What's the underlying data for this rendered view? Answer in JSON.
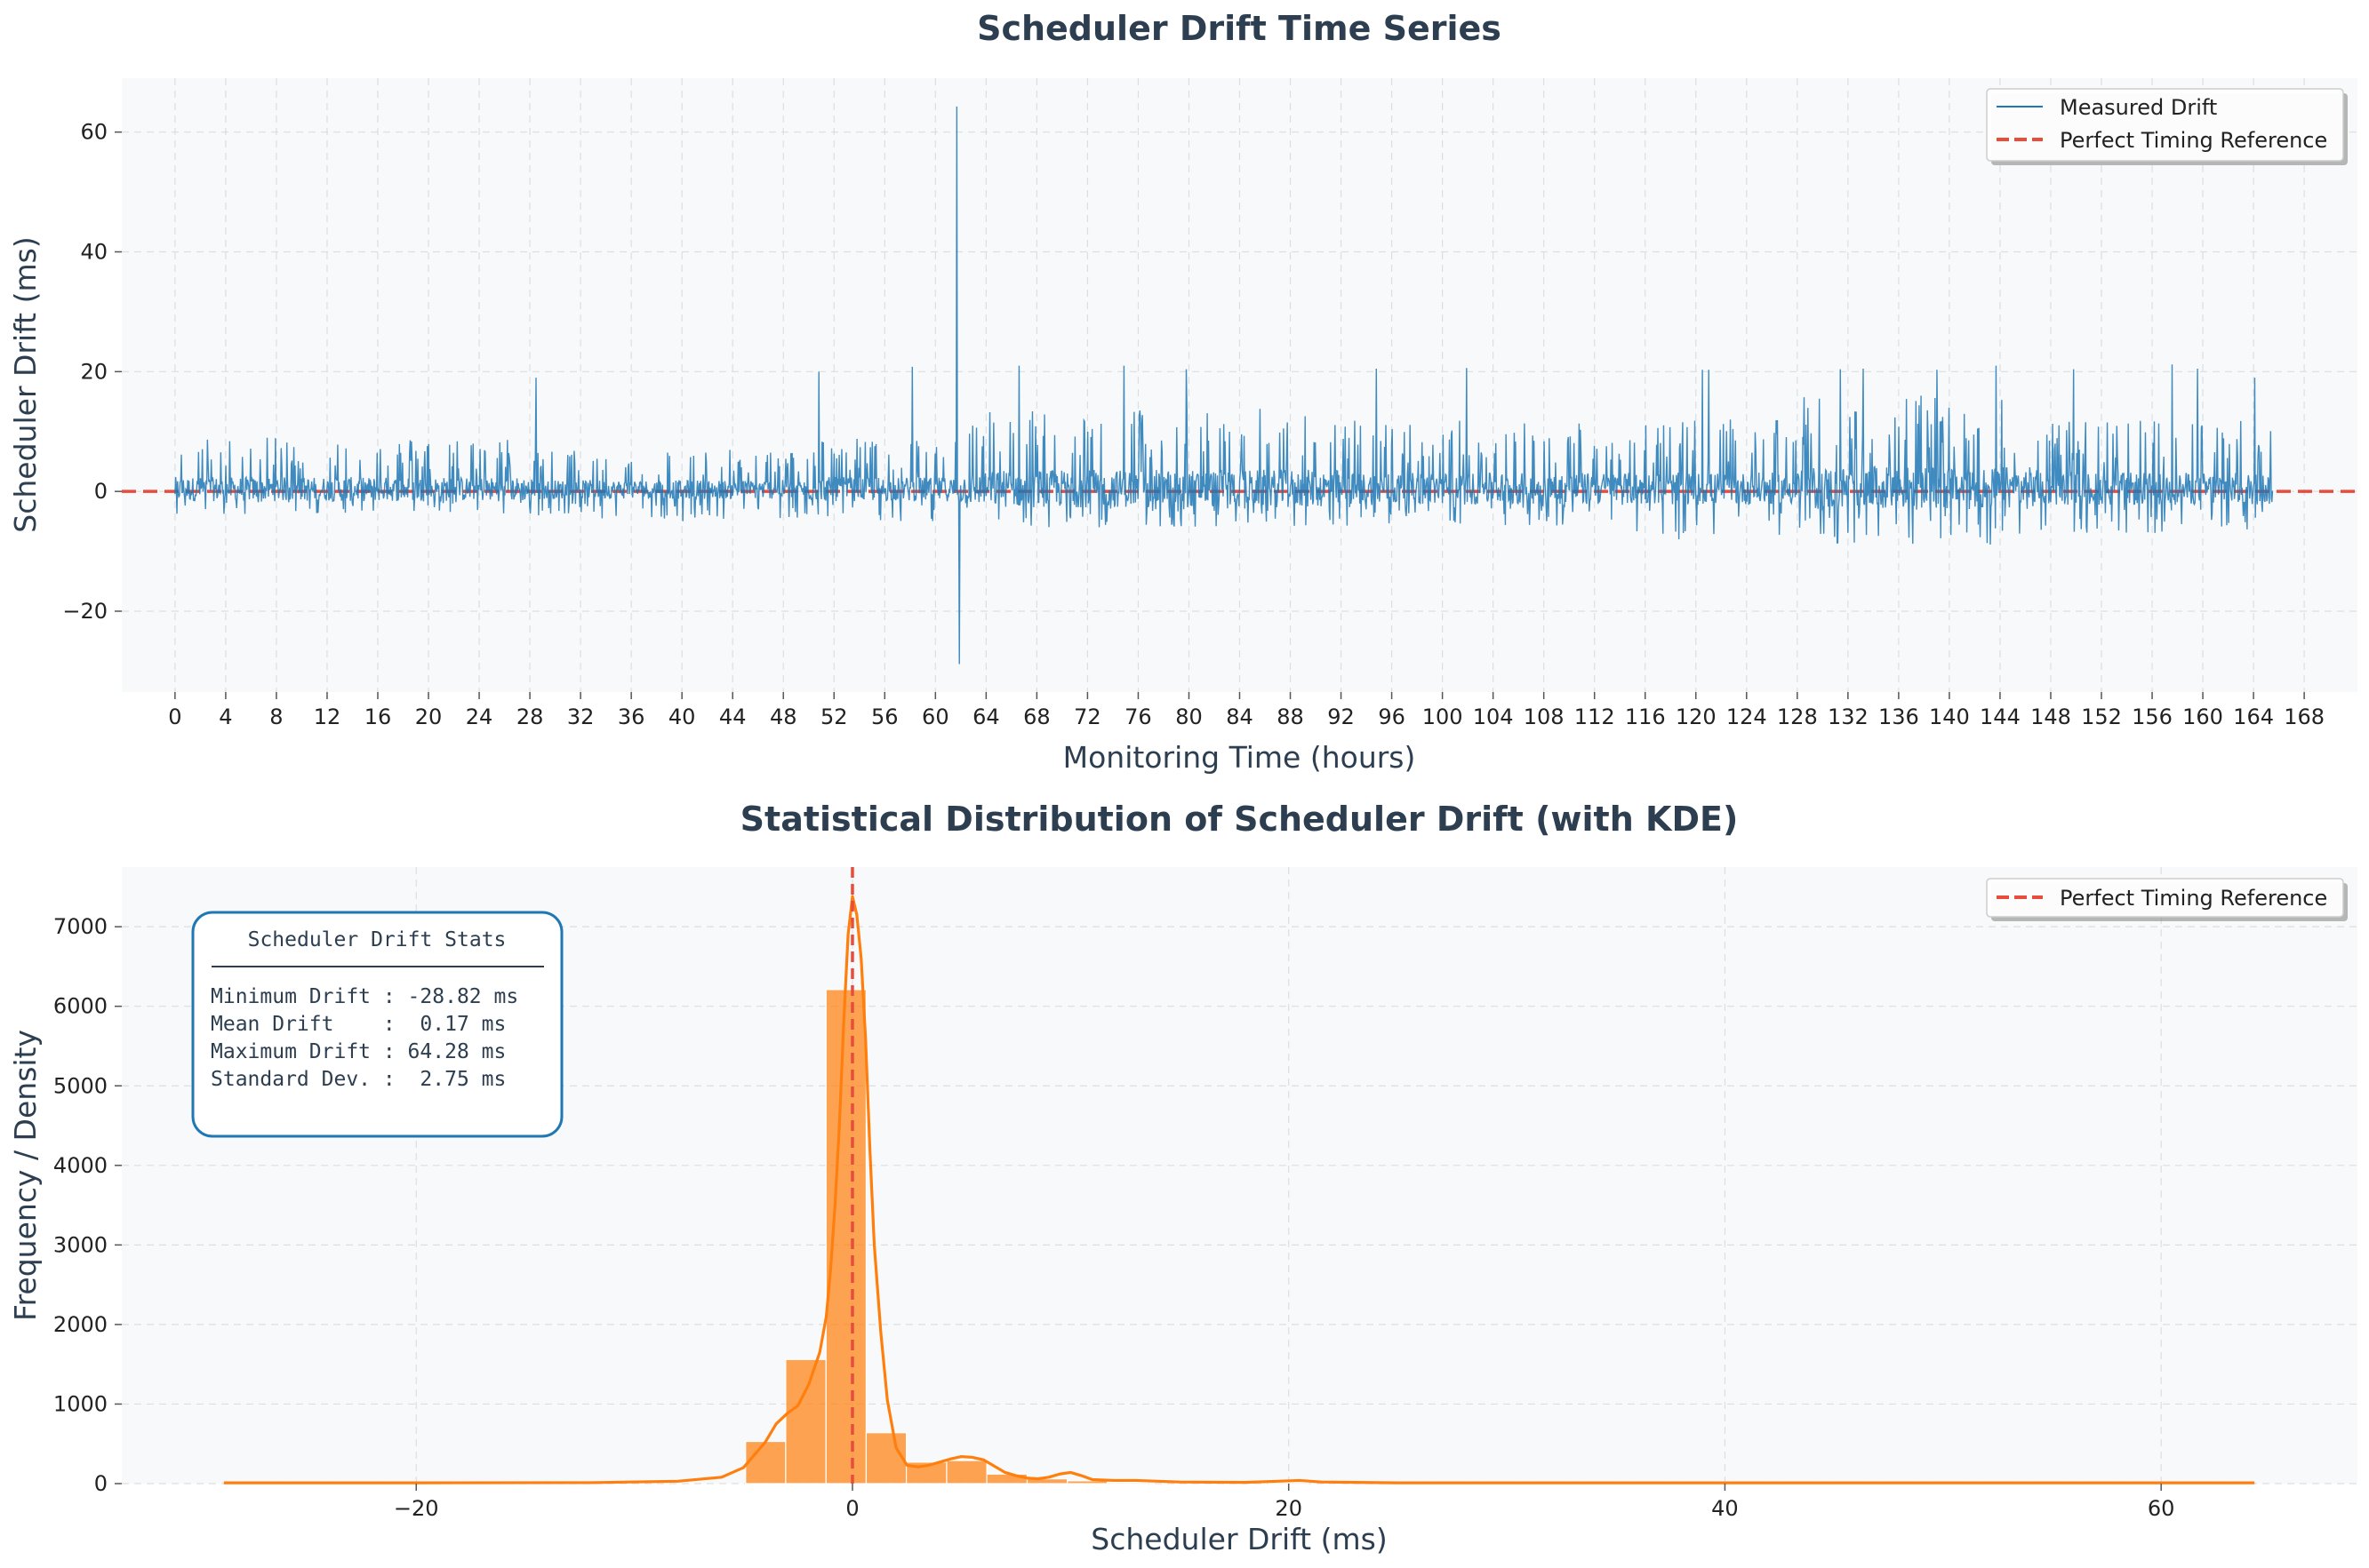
{
  "chart_data": [
    {
      "type": "line",
      "title": "Scheduler Drift Time Series",
      "xlabel": "Monitoring Time (hours)",
      "ylabel": "Scheduler Drift (ms)",
      "xlim": [
        -4.2,
        172.2
      ],
      "ylim": [
        -33.5,
        69.0
      ],
      "xticks": [
        0,
        4,
        8,
        12,
        16,
        20,
        24,
        28,
        32,
        36,
        40,
        44,
        48,
        52,
        56,
        60,
        64,
        68,
        72,
        76,
        80,
        84,
        88,
        92,
        96,
        100,
        104,
        108,
        112,
        116,
        120,
        124,
        128,
        132,
        136,
        140,
        144,
        148,
        152,
        156,
        160,
        164,
        168
      ],
      "yticks": [
        -20,
        0,
        20,
        40,
        60
      ],
      "ytick_labels": [
        "−20",
        "0",
        "20",
        "40",
        "60"
      ],
      "grid": true,
      "legend": "top-right",
      "series": [
        {
          "name": "Measured Drift",
          "color": "#1f77b4",
          "style": "solid",
          "x_range": [
            0,
            165.5
          ],
          "baseline": 0.17,
          "segments": [
            {
              "from": 0,
              "to": 29,
              "lo": -4,
              "hi": 9
            },
            {
              "from": 29,
              "to": 50,
              "lo": -5,
              "hi": 7
            },
            {
              "from": 50,
              "to": 61.8,
              "lo": -5,
              "hi": 9
            },
            {
              "from": 61.8,
              "to": 64,
              "lo": -6,
              "hi": 12
            },
            {
              "from": 64,
              "to": 92,
              "lo": -6,
              "hi": 14
            },
            {
              "from": 92,
              "to": 115,
              "lo": -6,
              "hi": 12
            },
            {
              "from": 115,
              "to": 128,
              "lo": -8,
              "hi": 12
            },
            {
              "from": 128,
              "to": 147,
              "lo": -9,
              "hi": 16
            },
            {
              "from": 147,
              "to": 165.5,
              "lo": -7,
              "hi": 12
            }
          ],
          "spikes": [
            {
              "x": 28.5,
              "y": 19.0
            },
            {
              "x": 28.7,
              "y": -4.0
            },
            {
              "x": 50.8,
              "y": 20.0
            },
            {
              "x": 58.2,
              "y": 20.8
            },
            {
              "x": 61.7,
              "y": 64.28
            },
            {
              "x": 61.9,
              "y": -28.82
            },
            {
              "x": 66.6,
              "y": 21.0
            },
            {
              "x": 74.9,
              "y": 21.0
            },
            {
              "x": 79.8,
              "y": 20.4
            },
            {
              "x": 94.8,
              "y": 20.5
            },
            {
              "x": 101.9,
              "y": 20.6
            },
            {
              "x": 120.5,
              "y": 20.3
            },
            {
              "x": 121.0,
              "y": 20.3
            },
            {
              "x": 131.4,
              "y": 20.4
            },
            {
              "x": 133.2,
              "y": 20.5
            },
            {
              "x": 139.0,
              "y": 20.3
            },
            {
              "x": 143.7,
              "y": 21.0
            },
            {
              "x": 149.8,
              "y": 20.4
            },
            {
              "x": 157.6,
              "y": 21.2
            },
            {
              "x": 159.6,
              "y": 20.5
            },
            {
              "x": 164.1,
              "y": 19.0
            }
          ]
        },
        {
          "name": "Perfect Timing Reference",
          "color": "#e74c3c",
          "style": "dashed",
          "y": 0
        }
      ]
    },
    {
      "type": "bar",
      "title": "Statistical Distribution of Scheduler Drift (with KDE)",
      "xlabel": "Scheduler Drift (ms)",
      "ylabel": "Frequency / Density",
      "xlim": [
        -33.5,
        69.0
      ],
      "ylim": [
        0,
        7750
      ],
      "xticks": [
        -20,
        0,
        20,
        40,
        60
      ],
      "xtick_labels": [
        "−20",
        "0",
        "20",
        "40",
        "60"
      ],
      "yticks": [
        0,
        1000,
        2000,
        3000,
        4000,
        5000,
        6000,
        7000
      ],
      "grid": true,
      "legend": "top-right",
      "bar_color": "#ff7f0e",
      "bins": [
        {
          "x0": -4.9,
          "x1": -3.06,
          "count": 530
        },
        {
          "x0": -3.06,
          "x1": -1.21,
          "count": 1560
        },
        {
          "x0": -1.21,
          "x1": 0.63,
          "count": 6210
        },
        {
          "x0": 0.63,
          "x1": 2.47,
          "count": 640
        },
        {
          "x0": 2.47,
          "x1": 4.32,
          "count": 270
        },
        {
          "x0": 4.32,
          "x1": 6.16,
          "count": 290
        },
        {
          "x0": 6.16,
          "x1": 8.01,
          "count": 120
        },
        {
          "x0": 8.01,
          "x1": 9.85,
          "count": 60
        },
        {
          "x0": 9.85,
          "x1": 11.69,
          "count": 35
        },
        {
          "x0": 11.69,
          "x1": 13.54,
          "count": 15
        },
        {
          "x0": 19.07,
          "x1": 20.91,
          "count": 15
        }
      ],
      "kde": {
        "name": "KDE",
        "color": "#ff7f0e",
        "x": [
          -28.82,
          -20,
          -12,
          -8,
          -6,
          -5,
          -4,
          -3.5,
          -3,
          -2.5,
          -2,
          -1.5,
          -1.2,
          -1,
          -0.8,
          -0.6,
          -0.4,
          -0.2,
          0,
          0.2,
          0.4,
          0.6,
          0.8,
          1,
          1.3,
          1.6,
          2,
          2.5,
          3,
          3.5,
          4,
          4.5,
          5,
          5.5,
          6,
          6.5,
          7,
          7.5,
          8,
          8.5,
          9,
          9.5,
          10,
          10.5,
          11,
          12,
          13,
          15,
          18,
          19.5,
          20.5,
          21.5,
          25,
          40,
          64.28
        ],
        "y": [
          10,
          10,
          12,
          30,
          80,
          200,
          520,
          750,
          880,
          980,
          1250,
          1650,
          2100,
          2700,
          3500,
          4500,
          5800,
          6900,
          7380,
          7150,
          6600,
          5600,
          4200,
          3000,
          1900,
          1050,
          450,
          230,
          210,
          230,
          270,
          310,
          340,
          330,
          300,
          220,
          140,
          100,
          70,
          60,
          80,
          120,
          140,
          100,
          50,
          40,
          40,
          20,
          15,
          30,
          40,
          20,
          10,
          10,
          10
        ]
      },
      "reference": {
        "name": "Perfect Timing Reference",
        "x": 0,
        "color": "#e74c3c",
        "style": "dashed"
      },
      "stats_box": {
        "title": "Scheduler Drift Stats",
        "lines": [
          "Minimum Drift : -28.82 ms",
          "Mean Drift    :  0.17 ms",
          "Maximum Drift : 64.28 ms",
          "Standard Dev. :  2.75 ms"
        ]
      }
    }
  ]
}
